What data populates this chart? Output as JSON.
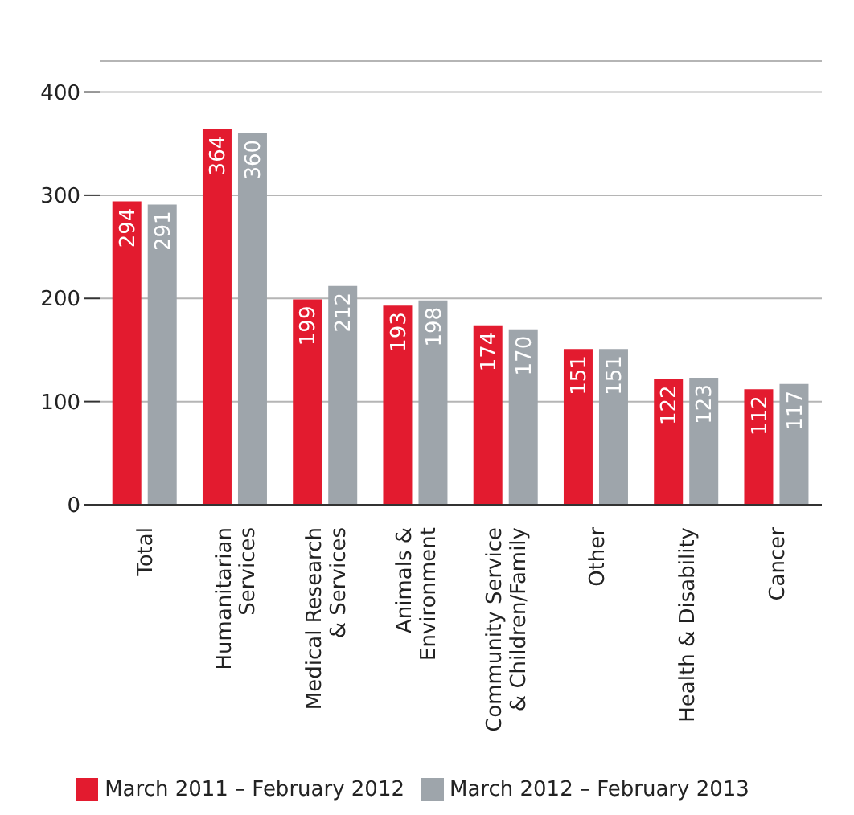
{
  "chart_data": {
    "type": "bar",
    "categories": [
      "Total",
      "Humanitarian\nServices",
      "Medical Research\n& Services",
      "Animals &\nEnvironment",
      "Community Service\n& Children/Family",
      "Other",
      "Health & Disability",
      "Cancer"
    ],
    "series": [
      {
        "name": "March 2011 – February 2012",
        "color": "#e31b2f",
        "values": [
          294,
          364,
          199,
          193,
          174,
          151,
          122,
          112
        ]
      },
      {
        "name": "March 2012 – February 2013",
        "color": "#9ea5ab",
        "values": [
          291,
          360,
          212,
          198,
          170,
          151,
          123,
          117
        ]
      }
    ],
    "ylim": [
      0,
      430
    ],
    "yticks": [
      0,
      100,
      200,
      300,
      400
    ],
    "grid": "y",
    "legend": "bottom",
    "data_labels": true
  }
}
